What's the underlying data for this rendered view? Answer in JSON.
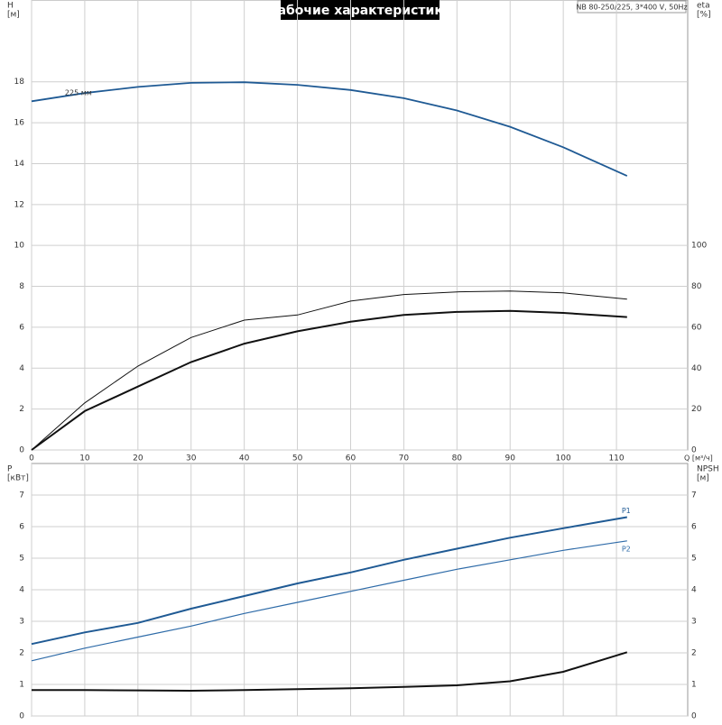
{
  "chart_data": [
    {
      "type": "line",
      "title": "Рабочие характеристики",
      "subtitle": "NB 80-250/225, 3*400 V, 50Hz",
      "ylabel": [
        "H",
        "[м]"
      ],
      "y2label": [
        "eta",
        "[%]"
      ],
      "xlabel": "Q [м³/ч]",
      "x": [
        0,
        10,
        20,
        30,
        40,
        50,
        60,
        70,
        80,
        90,
        100,
        112
      ],
      "xlim": [
        0,
        123.4
      ],
      "xticks": [
        0,
        10,
        20,
        30,
        40,
        50,
        60,
        70,
        80,
        90,
        100,
        110
      ],
      "ylim": [
        0,
        22
      ],
      "yticks": [
        0,
        2,
        4,
        6,
        8,
        10,
        12,
        14,
        16,
        18
      ],
      "y2lim": [
        0,
        220
      ],
      "y2ticks": [
        0,
        20,
        40,
        60,
        80,
        100
      ],
      "grid": true,
      "series": [
        {
          "name": "225 мм",
          "color": "#1f5a94",
          "values": [
            17.05,
            17.45,
            17.75,
            17.95,
            17.98,
            17.85,
            17.6,
            17.2,
            16.6,
            15.8,
            14.8,
            13.4
          ]
        },
        {
          "color": "#111111",
          "axis": "y2",
          "values": [
            0,
            23,
            41,
            55,
            63.5,
            66,
            72.8,
            76,
            77.3,
            77.7,
            76.8,
            73.7
          ]
        },
        {
          "color": "#111111",
          "axis": "y2",
          "values": [
            0,
            19,
            31,
            43,
            52,
            58,
            62.7,
            66,
            67.5,
            68,
            67,
            65
          ]
        }
      ]
    },
    {
      "type": "line",
      "ylabel": [
        "P",
        "[кВт]"
      ],
      "y2label": [
        "NPSH",
        "[м]"
      ],
      "x": [
        0,
        10,
        20,
        30,
        40,
        50,
        60,
        70,
        80,
        90,
        100,
        112
      ],
      "xlim": [
        0,
        123.4
      ],
      "ylim": [
        0,
        8
      ],
      "yticks": [
        0,
        1,
        2,
        3,
        4,
        5,
        6,
        7
      ],
      "y2lim": [
        0,
        8
      ],
      "y2ticks": [
        0,
        1,
        2,
        3,
        4,
        5,
        6,
        7
      ],
      "grid": true,
      "series": [
        {
          "name": "P1",
          "color": "#1f5a94",
          "values": [
            2.28,
            2.65,
            2.95,
            3.4,
            3.8,
            4.2,
            4.55,
            4.95,
            5.3,
            5.65,
            5.95,
            6.3
          ]
        },
        {
          "name": "P2",
          "color": "#2e6ba8",
          "values": [
            1.75,
            2.15,
            2.5,
            2.85,
            3.25,
            3.6,
            3.95,
            4.3,
            4.65,
            4.95,
            5.25,
            5.55
          ]
        },
        {
          "color": "#111111",
          "axis": "y2",
          "values": [
            0.82,
            0.82,
            0.81,
            0.8,
            0.82,
            0.85,
            0.88,
            0.92,
            0.97,
            1.1,
            1.4,
            2.02
          ]
        }
      ]
    }
  ]
}
